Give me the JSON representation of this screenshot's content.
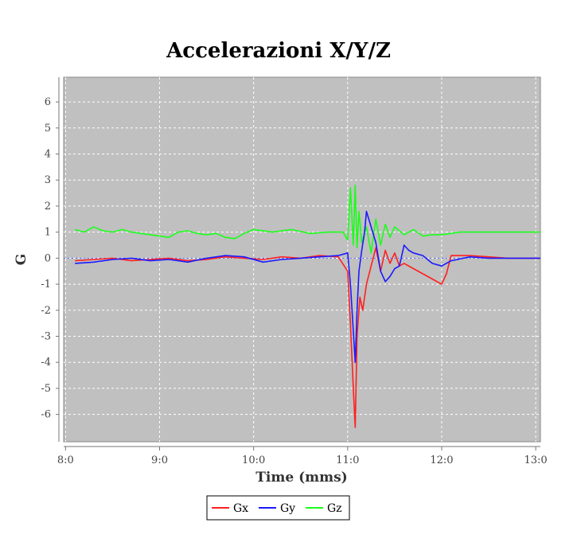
{
  "chart_data": {
    "type": "line",
    "title": "Accelerazioni X/Y/Z",
    "xlabel": "Time (mms)",
    "ylabel": "G",
    "x_ticks": [
      "8:0",
      "9:0",
      "10:0",
      "11:0",
      "12:0",
      "13:0"
    ],
    "x_tick_values": [
      8,
      9,
      10,
      11,
      12,
      13
    ],
    "y_ticks": [
      6,
      5,
      4,
      3,
      2,
      1,
      0,
      -1,
      -2,
      -3,
      -4,
      -5,
      -6
    ],
    "xlim": [
      7.98,
      13.05
    ],
    "ylim": [
      -7.05,
      6.95
    ],
    "grid": true,
    "legend_position": "bottom",
    "series": [
      {
        "name": "Gx",
        "color": "#ff2020",
        "x": [
          8.1,
          8.3,
          8.5,
          8.7,
          8.9,
          9.1,
          9.3,
          9.5,
          9.7,
          9.9,
          10.1,
          10.3,
          10.5,
          10.7,
          10.9,
          11.0,
          11.03,
          11.06,
          11.08,
          11.1,
          11.13,
          11.16,
          11.2,
          11.25,
          11.3,
          11.35,
          11.4,
          11.45,
          11.5,
          11.55,
          11.6,
          11.7,
          11.8,
          11.9,
          12.0,
          12.05,
          12.1,
          12.3,
          12.5,
          12.7,
          12.9,
          13.05
        ],
        "y": [
          -0.1,
          -0.05,
          0.0,
          -0.1,
          -0.05,
          0.0,
          -0.1,
          -0.05,
          0.05,
          0.0,
          -0.05,
          0.05,
          0.0,
          0.1,
          0.05,
          -0.5,
          -2.5,
          -5.0,
          -6.5,
          -3.0,
          -1.5,
          -2.0,
          -1.0,
          -0.3,
          0.4,
          -0.5,
          0.3,
          -0.2,
          0.2,
          -0.3,
          -0.2,
          -0.4,
          -0.6,
          -0.8,
          -1.0,
          -0.6,
          0.1,
          0.1,
          0.05,
          0.0,
          0.0,
          0.0
        ]
      },
      {
        "name": "Gy",
        "color": "#1a1aff",
        "x": [
          8.1,
          8.3,
          8.5,
          8.7,
          8.9,
          9.1,
          9.3,
          9.5,
          9.7,
          9.9,
          10.1,
          10.3,
          10.5,
          10.7,
          10.9,
          11.0,
          11.03,
          11.06,
          11.08,
          11.1,
          11.12,
          11.15,
          11.18,
          11.2,
          11.25,
          11.3,
          11.35,
          11.4,
          11.45,
          11.5,
          11.55,
          11.6,
          11.65,
          11.7,
          11.8,
          11.9,
          12.0,
          12.1,
          12.3,
          12.5,
          12.7,
          12.9,
          13.05
        ],
        "y": [
          -0.2,
          -0.15,
          -0.05,
          0.0,
          -0.1,
          -0.05,
          -0.15,
          0.0,
          0.1,
          0.05,
          -0.15,
          -0.05,
          0.0,
          0.05,
          0.1,
          0.2,
          -1.0,
          -2.8,
          -4.0,
          -2.0,
          -0.5,
          0.3,
          1.0,
          1.8,
          1.2,
          0.6,
          -0.5,
          -0.9,
          -0.7,
          -0.4,
          -0.3,
          0.5,
          0.3,
          0.2,
          0.1,
          -0.2,
          -0.3,
          -0.1,
          0.05,
          0.0,
          0.0,
          0.0,
          0.0
        ]
      },
      {
        "name": "Gz",
        "color": "#1aff1a",
        "x": [
          8.1,
          8.2,
          8.3,
          8.4,
          8.5,
          8.6,
          8.7,
          8.8,
          8.9,
          9.0,
          9.1,
          9.2,
          9.3,
          9.4,
          9.5,
          9.6,
          9.7,
          9.8,
          9.9,
          10.0,
          10.2,
          10.4,
          10.6,
          10.8,
          10.95,
          11.0,
          11.03,
          11.06,
          11.08,
          11.1,
          11.12,
          11.15,
          11.2,
          11.25,
          11.3,
          11.35,
          11.4,
          11.45,
          11.5,
          11.6,
          11.7,
          11.8,
          11.9,
          12.0,
          12.2,
          12.4,
          12.6,
          12.8,
          13.05
        ],
        "y": [
          1.1,
          1.0,
          1.2,
          1.05,
          1.0,
          1.1,
          1.0,
          0.95,
          0.9,
          0.85,
          0.8,
          1.0,
          1.05,
          0.95,
          0.9,
          0.95,
          0.8,
          0.75,
          0.95,
          1.1,
          1.0,
          1.1,
          0.95,
          1.0,
          1.0,
          0.7,
          2.7,
          0.5,
          2.8,
          0.4,
          1.8,
          0.6,
          1.2,
          0.2,
          1.5,
          0.5,
          1.3,
          0.8,
          1.2,
          0.9,
          1.1,
          0.85,
          0.9,
          0.9,
          1.0,
          1.0,
          1.0,
          1.0,
          1.0
        ]
      }
    ]
  }
}
